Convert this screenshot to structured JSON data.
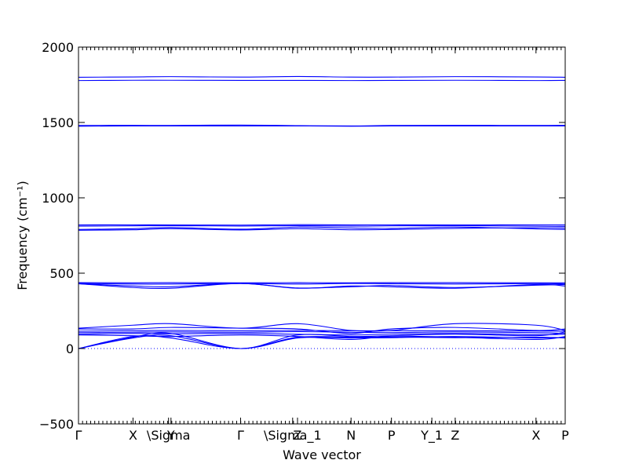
{
  "chart_data": {
    "type": "line",
    "title": "",
    "xlabel": "Wave vector",
    "ylabel": "Frequency (cm⁻¹)",
    "ylim": [
      -500,
      2000
    ],
    "yticks": [
      -500,
      0,
      500,
      1000,
      1500,
      2000
    ],
    "ytick_labels": [
      "−500",
      "0",
      "500",
      "1000",
      "1500",
      "2000"
    ],
    "xlim": [
      0,
      1
    ],
    "kpoints": [
      {
        "label": "Γ",
        "x": 0.0
      },
      {
        "label": "X",
        "x": 0.112
      },
      {
        "label": "\\Sigma",
        "x": 0.185
      },
      {
        "label": "Y",
        "x": 0.19
      },
      {
        "label": "Γ",
        "x": 0.333
      },
      {
        "label": "\\Sigma_1",
        "x": 0.44
      },
      {
        "label": "Z",
        "x": 0.45
      },
      {
        "label": "N",
        "x": 0.56
      },
      {
        "label": "P",
        "x": 0.643
      },
      {
        "label": "Y_1",
        "x": 0.726
      },
      {
        "label": "Z",
        "x": 0.774
      },
      {
        "label": "X",
        "x": 0.94
      },
      {
        "label": "P",
        "x": 1.0
      }
    ],
    "zero_line": true,
    "series": [
      {
        "x": [
          0,
          0.112,
          0.19,
          0.333,
          0.45,
          0.56,
          0.643,
          0.774,
          0.94,
          1.0
        ],
        "values": [
          1800,
          1802,
          1804,
          1801,
          1805,
          1801,
          1801,
          1804,
          1802,
          1800
        ]
      },
      {
        "x": [
          0,
          0.112,
          0.19,
          0.333,
          0.45,
          0.56,
          0.643,
          0.774,
          0.94,
          1.0
        ],
        "values": [
          1778,
          1780,
          1780,
          1779,
          1779,
          1778,
          1779,
          1780,
          1778,
          1779
        ]
      },
      {
        "x": [
          0,
          0.112,
          0.19,
          0.333,
          0.45,
          0.56,
          0.643,
          0.774,
          0.94,
          1.0
        ],
        "values": [
          1480,
          1481,
          1480,
          1483,
          1479,
          1477,
          1480,
          1481,
          1480,
          1481
        ]
      },
      {
        "x": [
          0,
          0.112,
          0.19,
          0.333,
          0.45,
          0.56,
          0.643,
          0.774,
          0.94,
          1.0
        ],
        "values": [
          1475,
          1477,
          1477,
          1477,
          1477,
          1475,
          1477,
          1477,
          1477,
          1477
        ]
      },
      {
        "x": [
          0,
          0.112,
          0.19,
          0.333,
          0.45,
          0.56,
          0.643,
          0.774,
          0.94,
          1.0
        ],
        "values": [
          820,
          821,
          820,
          819,
          822,
          820,
          821,
          820,
          821,
          820
        ]
      },
      {
        "x": [
          0,
          0.112,
          0.19,
          0.333,
          0.45,
          0.56,
          0.643,
          0.774,
          0.94,
          1.0
        ],
        "values": [
          812,
          814,
          815,
          813,
          815,
          812,
          814,
          815,
          812,
          810
        ]
      },
      {
        "x": [
          0,
          0.112,
          0.19,
          0.333,
          0.45,
          0.56,
          0.643,
          0.774,
          0.94,
          1.0
        ],
        "values": [
          790,
          795,
          803,
          792,
          806,
          800,
          797,
          806,
          794,
          790
        ]
      },
      {
        "x": [
          0,
          0.112,
          0.19,
          0.333,
          0.45,
          0.56,
          0.643,
          0.774,
          0.94,
          1.0
        ],
        "values": [
          785,
          788,
          795,
          787,
          795,
          788,
          790,
          797,
          802,
          800
        ]
      },
      {
        "x": [
          0,
          0.112,
          0.19,
          0.333,
          0.45,
          0.56,
          0.643,
          0.774,
          0.94,
          1.0
        ],
        "values": [
          437,
          436,
          437,
          436,
          437,
          436,
          437,
          437,
          436,
          436
        ]
      },
      {
        "x": [
          0,
          0.112,
          0.19,
          0.333,
          0.45,
          0.56,
          0.643,
          0.774,
          0.94,
          1.0
        ],
        "values": [
          432,
          428,
          428,
          432,
          428,
          432,
          430,
          428,
          431,
          429
        ]
      },
      {
        "x": [
          0,
          0.112,
          0.19,
          0.333,
          0.45,
          0.56,
          0.643,
          0.774,
          0.94,
          1.0
        ],
        "values": [
          430,
          405,
          400,
          432,
          400,
          415,
          410,
          400,
          425,
          415
        ]
      },
      {
        "x": [
          0,
          0.112,
          0.19,
          0.333,
          0.45,
          0.56,
          0.643,
          0.774,
          0.94,
          1.0
        ],
        "values": [
          430,
          415,
          410,
          432,
          402,
          410,
          418,
          405,
          420,
          425
        ]
      },
      {
        "x": [
          0,
          0.112,
          0.19,
          0.333,
          0.45,
          0.56,
          0.643,
          0.774,
          0.94,
          1.0
        ],
        "values": [
          135,
          155,
          165,
          135,
          165,
          120,
          120,
          165,
          155,
          120
        ]
      },
      {
        "x": [
          0,
          0.112,
          0.19,
          0.333,
          0.45,
          0.56,
          0.643,
          0.774,
          0.94,
          1.0
        ],
        "values": [
          130,
          130,
          140,
          135,
          130,
          100,
          130,
          140,
          120,
          130
        ]
      },
      {
        "x": [
          0,
          0.112,
          0.19,
          0.333,
          0.45,
          0.56,
          0.643,
          0.774,
          0.94,
          1.0
        ],
        "values": [
          115,
          118,
          120,
          118,
          120,
          118,
          118,
          118,
          116,
          115
        ]
      },
      {
        "x": [
          0,
          0.112,
          0.19,
          0.333,
          0.45,
          0.56,
          0.643,
          0.774,
          0.94,
          1.0
        ],
        "values": [
          105,
          108,
          110,
          108,
          112,
          108,
          106,
          110,
          105,
          100
        ]
      },
      {
        "x": [
          0,
          0.112,
          0.19,
          0.333,
          0.45,
          0.56,
          0.643,
          0.774,
          0.94,
          1.0
        ],
        "values": [
          95,
          100,
          98,
          100,
          95,
          90,
          95,
          100,
          92,
          95
        ]
      },
      {
        "x": [
          0,
          0.112,
          0.19,
          0.333,
          0.45,
          0.56,
          0.643,
          0.774,
          0.94,
          1.0
        ],
        "values": [
          90,
          85,
          80,
          90,
          80,
          60,
          82,
          75,
          60,
          80
        ]
      },
      {
        "x": [
          0,
          0.112,
          0.19,
          0.333,
          0.45,
          0.56,
          0.643,
          0.774,
          0.94,
          1.0
        ],
        "values": [
          0,
          75,
          100,
          0,
          90,
          80,
          85,
          95,
          85,
          110
        ]
      },
      {
        "x": [
          0,
          0.112,
          0.19,
          0.333,
          0.45,
          0.56,
          0.643,
          0.774,
          0.94,
          1.0
        ],
        "values": [
          0,
          70,
          85,
          0,
          70,
          70,
          72,
          80,
          70,
          75
        ]
      },
      {
        "x": [
          0,
          0.112,
          0.19,
          0.333,
          0.45,
          0.56,
          0.643,
          0.774,
          0.94,
          1.0
        ],
        "values": [
          0,
          80,
          70,
          0,
          75,
          75,
          76,
          72,
          75,
          70
        ]
      }
    ]
  }
}
